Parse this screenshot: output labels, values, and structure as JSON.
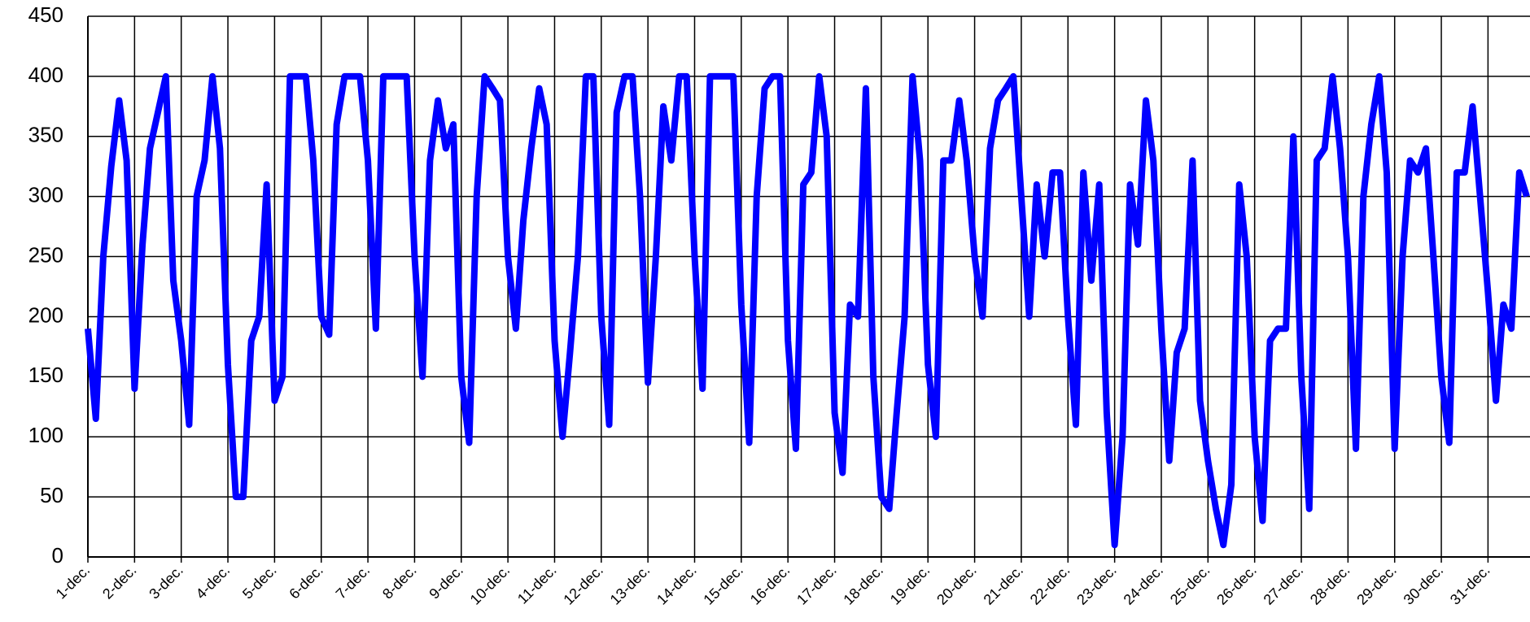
{
  "chart_data": {
    "type": "line",
    "xlim": [
      0,
      30.9
    ],
    "xticks": [
      {
        "value": 0,
        "label": "1-dec."
      },
      {
        "value": 1,
        "label": "2-dec."
      },
      {
        "value": 2,
        "label": "3-dec."
      },
      {
        "value": 3,
        "label": "4-dec."
      },
      {
        "value": 4,
        "label": "5-dec."
      },
      {
        "value": 5,
        "label": "6-dec."
      },
      {
        "value": 6,
        "label": "7-dec."
      },
      {
        "value": 7,
        "label": "8-dec."
      },
      {
        "value": 8,
        "label": "9-dec."
      },
      {
        "value": 9,
        "label": "10-dec."
      },
      {
        "value": 10,
        "label": "11-dec."
      },
      {
        "value": 11,
        "label": "12-dec."
      },
      {
        "value": 12,
        "label": "13-dec."
      },
      {
        "value": 13,
        "label": "14-dec."
      },
      {
        "value": 14,
        "label": "15-dec."
      },
      {
        "value": 15,
        "label": "16-dec."
      },
      {
        "value": 16,
        "label": "17-dec."
      },
      {
        "value": 17,
        "label": "18-dec."
      },
      {
        "value": 18,
        "label": "19-dec."
      },
      {
        "value": 19,
        "label": "20-dec."
      },
      {
        "value": 20,
        "label": "21-dec."
      },
      {
        "value": 21,
        "label": "22-dec."
      },
      {
        "value": 22,
        "label": "23-dec."
      },
      {
        "value": 23,
        "label": "24-dec."
      },
      {
        "value": 24,
        "label": "25-dec."
      },
      {
        "value": 25,
        "label": "26-dec."
      },
      {
        "value": 26,
        "label": "27-dec."
      },
      {
        "value": 27,
        "label": "28-dec."
      },
      {
        "value": 28,
        "label": "29-dec."
      },
      {
        "value": 29,
        "label": "30-dec."
      },
      {
        "value": 30,
        "label": "31-dec."
      }
    ],
    "ylim": [
      0,
      450
    ],
    "yticks": [
      0,
      50,
      100,
      150,
      200,
      250,
      300,
      350,
      400,
      450
    ],
    "grid": true,
    "x": [
      0,
      0.17,
      0.33,
      0.5,
      0.67,
      0.83,
      1,
      1.17,
      1.33,
      1.5,
      1.67,
      1.83,
      2,
      2.17,
      2.33,
      2.5,
      2.67,
      2.83,
      3,
      3.17,
      3.33,
      3.5,
      3.67,
      3.83,
      4,
      4.17,
      4.33,
      4.5,
      4.67,
      4.83,
      5,
      5.17,
      5.33,
      5.5,
      5.67,
      5.83,
      6,
      6.17,
      6.33,
      6.5,
      6.67,
      6.83,
      7,
      7.17,
      7.33,
      7.5,
      7.67,
      7.83,
      8,
      8.17,
      8.33,
      8.5,
      8.67,
      8.83,
      9,
      9.17,
      9.33,
      9.5,
      9.67,
      9.83,
      10,
      10.17,
      10.33,
      10.5,
      10.67,
      10.83,
      11,
      11.17,
      11.33,
      11.5,
      11.67,
      11.83,
      12,
      12.17,
      12.33,
      12.5,
      12.67,
      12.83,
      13,
      13.17,
      13.33,
      13.5,
      13.67,
      13.83,
      14,
      14.17,
      14.33,
      14.5,
      14.67,
      14.83,
      15,
      15.17,
      15.33,
      15.5,
      15.67,
      15.83,
      16,
      16.17,
      16.33,
      16.5,
      16.67,
      16.83,
      17,
      17.17,
      17.33,
      17.5,
      17.67,
      17.83,
      18,
      18.17,
      18.33,
      18.5,
      18.67,
      18.83,
      19,
      19.17,
      19.33,
      19.5,
      19.67,
      19.83,
      20,
      20.17,
      20.33,
      20.5,
      20.67,
      20.83,
      21,
      21.17,
      21.33,
      21.5,
      21.67,
      21.83,
      22,
      22.17,
      22.33,
      22.5,
      22.67,
      22.83,
      23,
      23.17,
      23.33,
      23.5,
      23.67,
      23.83,
      24,
      24.17,
      24.33,
      24.5,
      24.67,
      24.83,
      25,
      25.17,
      25.33,
      25.5,
      25.67,
      25.83,
      26,
      26.17,
      26.33,
      26.5,
      26.67,
      26.83,
      27,
      27.17,
      27.33,
      27.5,
      27.67,
      27.83,
      28,
      28.17,
      28.33,
      28.5,
      28.67,
      28.83,
      29,
      29.17,
      29.33,
      29.5,
      29.67,
      29.83,
      30,
      30.17,
      30.33,
      30.5,
      30.67,
      30.83
    ],
    "series": [
      {
        "color": "#0000ff",
        "values": [
          190,
          115,
          250,
          325,
          380,
          330,
          140,
          260,
          340,
          370,
          400,
          230,
          180,
          110,
          300,
          330,
          400,
          340,
          160,
          50,
          50,
          180,
          200,
          310,
          130,
          150,
          400,
          400,
          400,
          330,
          200,
          185,
          360,
          400,
          400,
          400,
          330,
          190,
          400,
          400,
          400,
          400,
          250,
          150,
          330,
          380,
          340,
          360,
          150,
          95,
          300,
          400,
          390,
          380,
          250,
          190,
          280,
          340,
          390,
          360,
          180,
          100,
          170,
          250,
          400,
          400,
          200,
          110,
          370,
          400,
          400,
          300,
          145,
          250,
          375,
          330,
          400,
          400,
          250,
          140,
          400,
          400,
          400,
          400,
          210,
          95,
          300,
          390,
          400,
          400,
          180,
          90,
          310,
          320,
          400,
          350,
          120,
          70,
          210,
          200,
          390,
          150,
          50,
          40,
          120,
          200,
          400,
          330,
          160,
          100,
          330,
          330,
          380,
          330,
          250,
          200,
          340,
          380,
          390,
          400,
          300,
          200,
          310,
          250,
          320,
          320,
          200,
          110,
          320,
          230,
          310,
          120,
          10,
          100,
          310,
          260,
          380,
          330,
          190,
          80,
          170,
          190,
          330,
          130,
          80,
          40,
          10,
          60,
          310,
          250,
          100,
          30,
          180,
          190,
          190,
          350,
          150,
          40,
          330,
          340,
          400,
          340,
          250,
          90,
          300,
          360,
          400,
          320,
          90,
          250,
          330,
          320,
          340,
          250,
          150,
          95,
          320,
          320,
          375,
          300,
          220,
          130,
          210,
          190,
          320,
          300
        ]
      }
    ]
  }
}
